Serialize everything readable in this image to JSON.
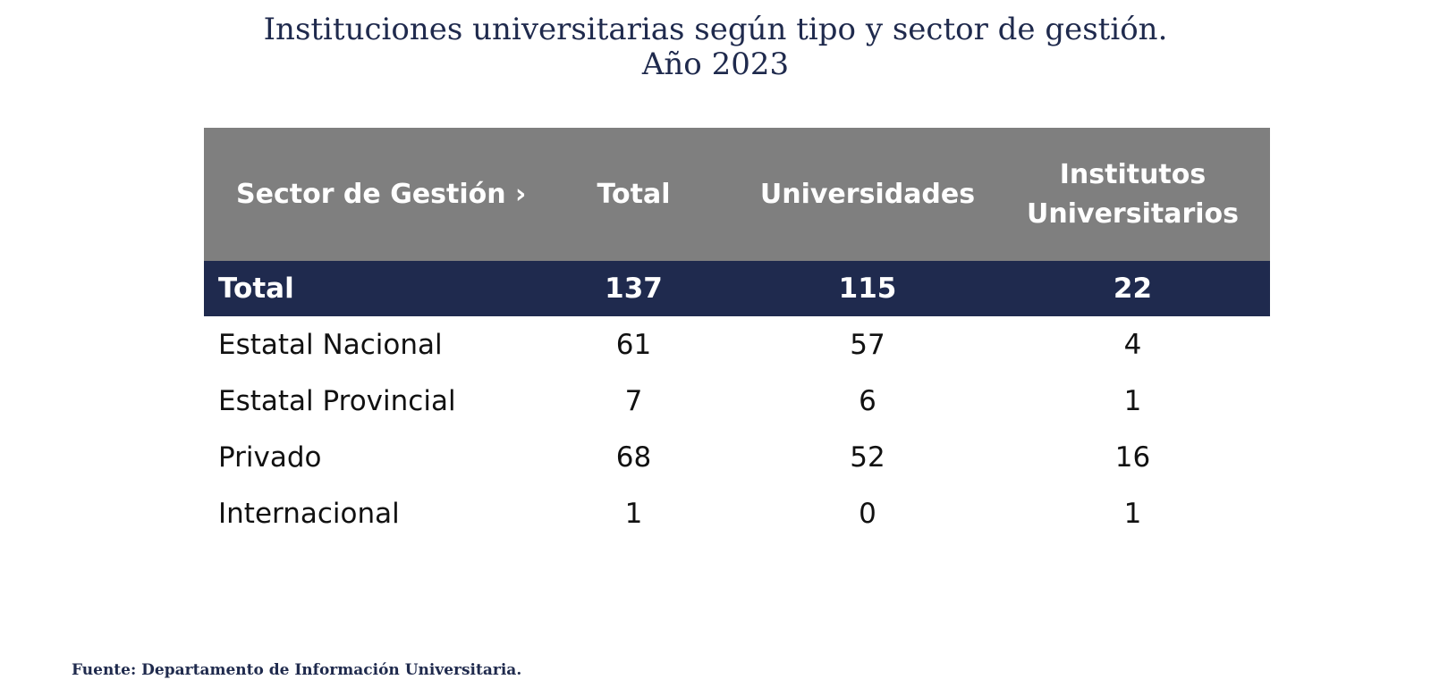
{
  "title": {
    "line1": "Instituciones universitarias según tipo y sector de gestión.",
    "line2": "Año 2023"
  },
  "source": "Fuente: Departamento de Información Universitaria.",
  "colors": {
    "header_bg": "#7f7f7f",
    "total_bg": "#1f2a4e",
    "title_text": "#1f2a4d"
  },
  "chart_data": {
    "type": "table",
    "title": "Instituciones universitarias según tipo y sector de gestión. Año 2023",
    "columns": [
      "Sector de Gestión ›",
      "Total",
      "Universidades",
      "Institutos Universitarios"
    ],
    "rows": [
      {
        "label": "Total",
        "values": [
          "137",
          "115",
          "22"
        ]
      },
      {
        "label": "Estatal Nacional",
        "values": [
          "61",
          "57",
          "4"
        ]
      },
      {
        "label": "Estatal Provincial",
        "values": [
          "7",
          "6",
          "1"
        ]
      },
      {
        "label": "Privado",
        "values": [
          "68",
          "52",
          "16"
        ]
      },
      {
        "label": "Internacional",
        "values": [
          "1",
          "0",
          "1"
        ]
      }
    ]
  }
}
